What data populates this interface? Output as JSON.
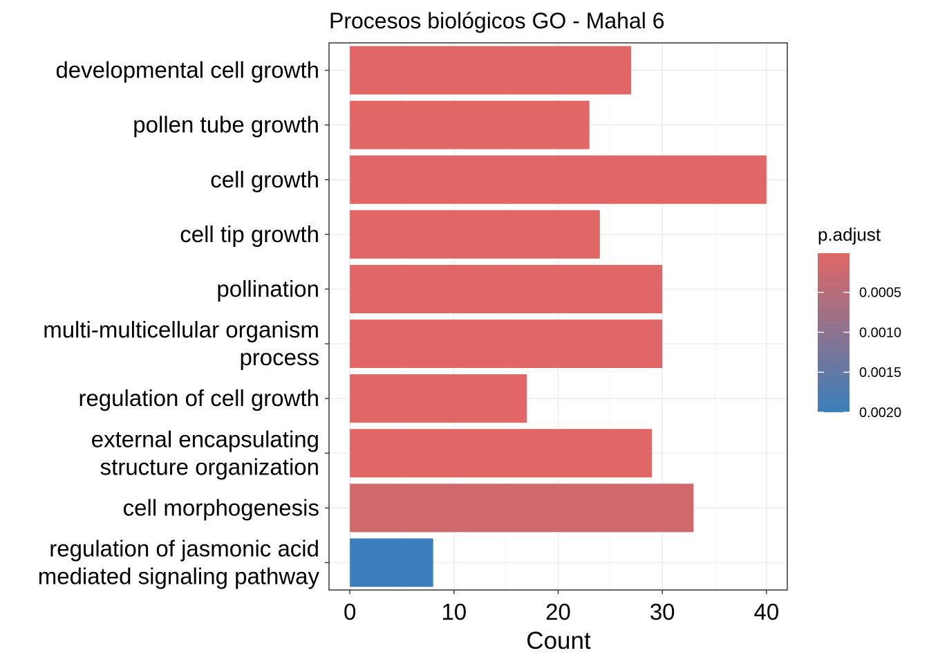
{
  "chart_data": {
    "type": "bar",
    "orientation": "horizontal",
    "title": "Procesos biológicos GO - Mahal 6",
    "xlabel": "Count",
    "ylabel": "",
    "xlim": [
      -2,
      42
    ],
    "x_ticks": [
      0,
      10,
      20,
      30,
      40
    ],
    "grid": true,
    "categories": [
      [
        "developmental cell growth"
      ],
      [
        "pollen tube growth"
      ],
      [
        "cell growth"
      ],
      [
        "cell tip growth"
      ],
      [
        "pollination"
      ],
      [
        "multi-multicellular organism",
        "process"
      ],
      [
        "regulation of cell growth"
      ],
      [
        "external encapsulating",
        "structure organization"
      ],
      [
        "cell morphogenesis"
      ],
      [
        "regulation of jasmonic acid",
        "mediated signaling pathway"
      ]
    ],
    "values": [
      27,
      23,
      40,
      24,
      30,
      30,
      17,
      29,
      33,
      8
    ],
    "p_adjust": [
      1e-05,
      1e-05,
      1e-05,
      1e-05,
      1e-05,
      1e-05,
      1e-05,
      1e-05,
      0.0002,
      0.002
    ],
    "colorbar": {
      "title": "p.adjust",
      "ticks": [
        0.0005,
        0.001,
        0.0015,
        0.002
      ],
      "tick_labels": [
        "0.0005",
        "0.0010",
        "0.0015",
        "0.0020"
      ],
      "range": [
        1e-05,
        0.002
      ],
      "low_color": "#E06765",
      "high_color": "#3A7FBB"
    },
    "legend_placement": "right"
  }
}
